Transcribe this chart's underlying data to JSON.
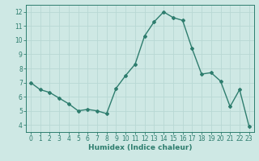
{
  "x": [
    0,
    1,
    2,
    3,
    4,
    5,
    6,
    7,
    8,
    9,
    10,
    11,
    12,
    13,
    14,
    15,
    16,
    17,
    18,
    19,
    20,
    21,
    22,
    23
  ],
  "y": [
    7.0,
    6.5,
    6.3,
    5.9,
    5.5,
    5.0,
    5.1,
    5.0,
    4.8,
    6.6,
    7.5,
    8.3,
    10.3,
    11.3,
    12.0,
    11.6,
    11.4,
    9.4,
    7.6,
    7.7,
    7.1,
    5.3,
    6.5,
    3.9
  ],
  "line_color": "#2e7d6e",
  "bg_color": "#cee8e4",
  "grid_color": "#b8d8d4",
  "xlabel": "Humidex (Indice chaleur)",
  "ylim": [
    3.5,
    12.5
  ],
  "xlim": [
    -0.5,
    23.5
  ],
  "yticks": [
    4,
    5,
    6,
    7,
    8,
    9,
    10,
    11,
    12
  ],
  "xticks": [
    0,
    1,
    2,
    3,
    4,
    5,
    6,
    7,
    8,
    9,
    10,
    11,
    12,
    13,
    14,
    15,
    16,
    17,
    18,
    19,
    20,
    21,
    22,
    23
  ],
  "tick_color": "#2e7d6e",
  "tick_fontsize": 5.5,
  "xlabel_fontsize": 6.5,
  "marker": "D",
  "marker_size": 2.0,
  "line_width": 1.0
}
